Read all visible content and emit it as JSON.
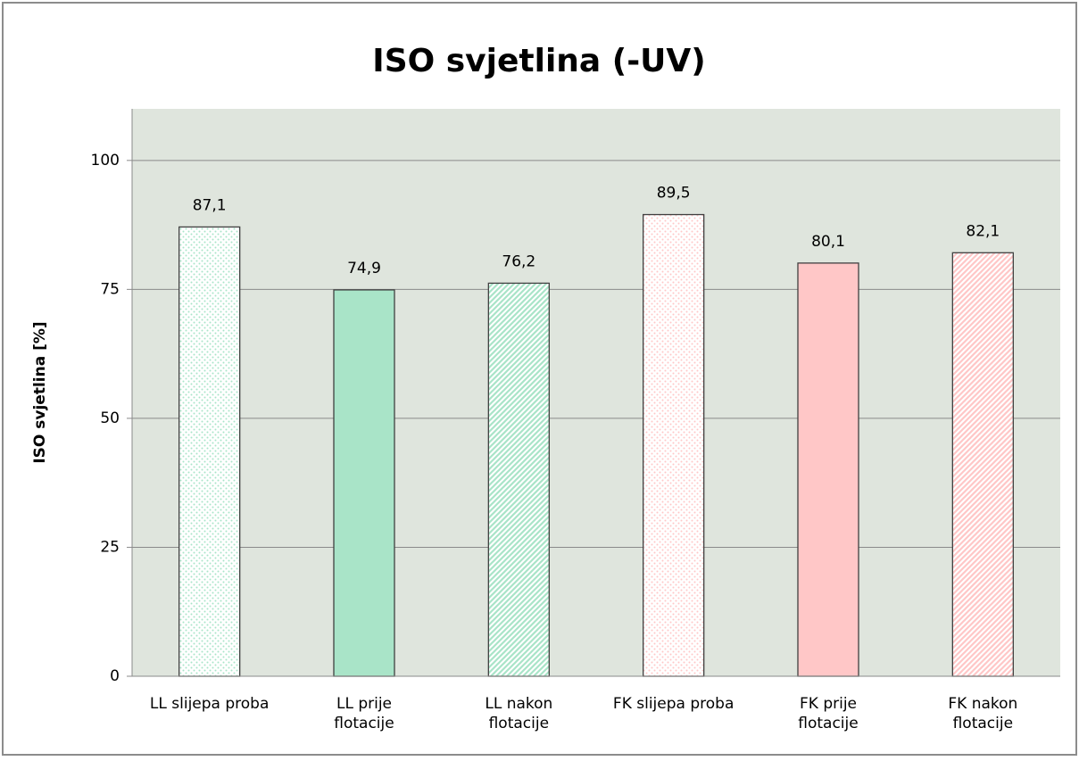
{
  "chart_data": {
    "type": "bar",
    "title": "ISO svjetlina (-UV)",
    "y_label": "ISO svjetlina [%]",
    "categories": [
      "LL slijepa proba",
      "LL prije flotacije",
      "LL nakon flotacije",
      "FK slijepa proba",
      "FK prije flotacije",
      "FK nakon flotacije"
    ],
    "values": [
      87.1,
      74.9,
      76.2,
      89.5,
      80.1,
      82.1
    ],
    "value_labels": [
      "87,1",
      "74,9",
      "76,2",
      "89,5",
      "80,1",
      "82,1"
    ],
    "colors": [
      "#a9e4c8",
      "#a9e4c8",
      "#a9e4c8",
      "#ffc7c7",
      "#ffc7c7",
      "#ffc7c7"
    ],
    "patterns": [
      "dots",
      "solid",
      "stripes",
      "dots",
      "solid",
      "stripes"
    ],
    "ylim": [
      0,
      110
    ],
    "yticks": [
      0,
      25,
      50,
      75,
      100
    ],
    "grid": true
  }
}
